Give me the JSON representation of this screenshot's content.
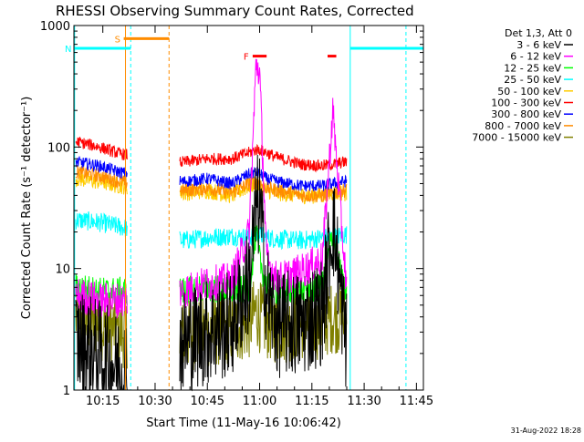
{
  "chart_data": {
    "type": "line",
    "title": "RHESSI Observing Summary Count Rates, Corrected",
    "xlabel": "Start Time (11-May-16 10:06:42)",
    "ylabel": "Corrected Count Rate (s⁻¹ detector⁻¹)",
    "yscale": "log",
    "xlim_minutes": [
      6.7,
      107
    ],
    "ylim": [
      1,
      1000
    ],
    "x_ticks": [
      {
        "minute": 15,
        "label": "10:15"
      },
      {
        "minute": 30,
        "label": "10:30"
      },
      {
        "minute": 45,
        "label": "10:45"
      },
      {
        "minute": 60,
        "label": "11:00"
      },
      {
        "minute": 75,
        "label": "11:15"
      },
      {
        "minute": 90,
        "label": "11:30"
      },
      {
        "minute": 105,
        "label": "11:45"
      }
    ],
    "y_ticks": [
      {
        "value": 1,
        "label": "1"
      },
      {
        "value": 10,
        "label": "10"
      },
      {
        "value": 100,
        "label": "100"
      },
      {
        "value": 1000,
        "label": "1000"
      }
    ],
    "grid": false,
    "legend_placement": "top-right outside",
    "legend_header": "Det 1,3, Att 0",
    "footer_date": "31-Aug-2022 18:28",
    "data_gaps_minutes": [
      [
        22,
        37
      ],
      [
        85,
        102
      ]
    ],
    "series": [
      {
        "name": "3 - 6 keV",
        "color": "#000000",
        "x": [
          8,
          14,
          20,
          38,
          45,
          52,
          57,
          59,
          60,
          62,
          65,
          72,
          78,
          81,
          84,
          85
        ],
        "y": [
          2.5,
          2.0,
          1.5,
          2.5,
          3.0,
          3.5,
          8,
          30,
          35,
          6,
          3.5,
          3.5,
          4.5,
          25,
          4,
          2.5
        ]
      },
      {
        "name": "6 - 12 keV",
        "color": "#ff00ff",
        "x": [
          8,
          14,
          20,
          38,
          45,
          52,
          57,
          59,
          60,
          62,
          65,
          72,
          78,
          81,
          84,
          85
        ],
        "y": [
          6,
          5.5,
          5.5,
          6.5,
          7.5,
          8,
          20,
          500,
          400,
          12,
          8,
          9.5,
          12,
          200,
          15,
          7
        ]
      },
      {
        "name": "12 - 25 keV",
        "color": "#00ff00",
        "x": [
          8,
          14,
          20,
          38,
          45,
          52,
          57,
          59,
          60,
          62,
          65,
          72,
          78,
          81,
          84,
          85
        ],
        "y": [
          7,
          6.5,
          6.5,
          6.5,
          7,
          6.5,
          6.8,
          20,
          12,
          7,
          6.5,
          6.5,
          7,
          20,
          7,
          6.5
        ]
      },
      {
        "name": "25 - 50 keV",
        "color": "#00ffff",
        "x": [
          8,
          14,
          20,
          38,
          45,
          52,
          57,
          59,
          60,
          62,
          65,
          72,
          78,
          81,
          84,
          85
        ],
        "y": [
          25,
          24,
          22,
          17,
          18,
          18.5,
          18,
          19,
          19,
          18,
          17.5,
          17,
          18,
          18,
          19,
          19
        ]
      },
      {
        "name": "50 - 100 keV",
        "color": "#ffcc00",
        "x": [
          8,
          14,
          20,
          38,
          45,
          52,
          57,
          59,
          60,
          62,
          65,
          72,
          78,
          81,
          84,
          85
        ],
        "y": [
          55,
          52,
          48,
          42,
          44,
          40,
          48,
          50,
          48,
          44,
          42,
          40,
          40,
          42,
          42,
          42
        ]
      },
      {
        "name": "100 - 300 keV",
        "color": "#ff0000",
        "x": [
          8,
          14,
          20,
          38,
          45,
          52,
          57,
          59,
          60,
          62,
          65,
          72,
          78,
          81,
          84,
          85
        ],
        "y": [
          110,
          100,
          88,
          75,
          80,
          80,
          90,
          95,
          95,
          90,
          82,
          72,
          70,
          72,
          75,
          75
        ]
      },
      {
        "name": "300 - 800 keV",
        "color": "#0000ff",
        "x": [
          8,
          14,
          20,
          38,
          45,
          52,
          57,
          59,
          60,
          62,
          65,
          72,
          78,
          81,
          84,
          85
        ],
        "y": [
          75,
          70,
          62,
          52,
          55,
          50,
          60,
          62,
          60,
          55,
          52,
          48,
          48,
          50,
          52,
          52
        ]
      },
      {
        "name": "800 - 7000 keV",
        "color": "#ff8c00",
        "x": [
          8,
          14,
          20,
          38,
          45,
          52,
          57,
          59,
          60,
          62,
          65,
          72,
          78,
          81,
          84,
          85
        ],
        "y": [
          62,
          58,
          52,
          44,
          46,
          42,
          50,
          52,
          50,
          46,
          44,
          40,
          40,
          42,
          44,
          44
        ]
      },
      {
        "name": "7000 - 15000 keV",
        "color": "#808000",
        "x": [
          8,
          14,
          20,
          38,
          45,
          52,
          57,
          59,
          60,
          62,
          65,
          72,
          78,
          81,
          84,
          85
        ],
        "y": [
          4,
          3.5,
          3,
          2.8,
          3.0,
          3.2,
          3.5,
          4.5,
          4,
          3.5,
          3.2,
          3.5,
          3.5,
          4,
          3.8,
          3.5
        ]
      }
    ],
    "annotations": [
      {
        "label": "S",
        "color": "#ff8c00",
        "x_range": [
          21,
          34
        ],
        "y": 780
      },
      {
        "label": "N",
        "color": "#00ffff",
        "x_range": [
          6.7,
          23
        ],
        "y": 650
      },
      {
        "label": "F",
        "color": "#ff0000",
        "x_range": [
          58,
          62
        ],
        "y": 560
      },
      {
        "label": "",
        "color": "#ff0000",
        "x_range": [
          79.5,
          82
        ],
        "y": 560
      },
      {
        "label": "",
        "color": "#00ffff",
        "x_range": [
          86,
          107
        ],
        "y": 650
      }
    ]
  }
}
